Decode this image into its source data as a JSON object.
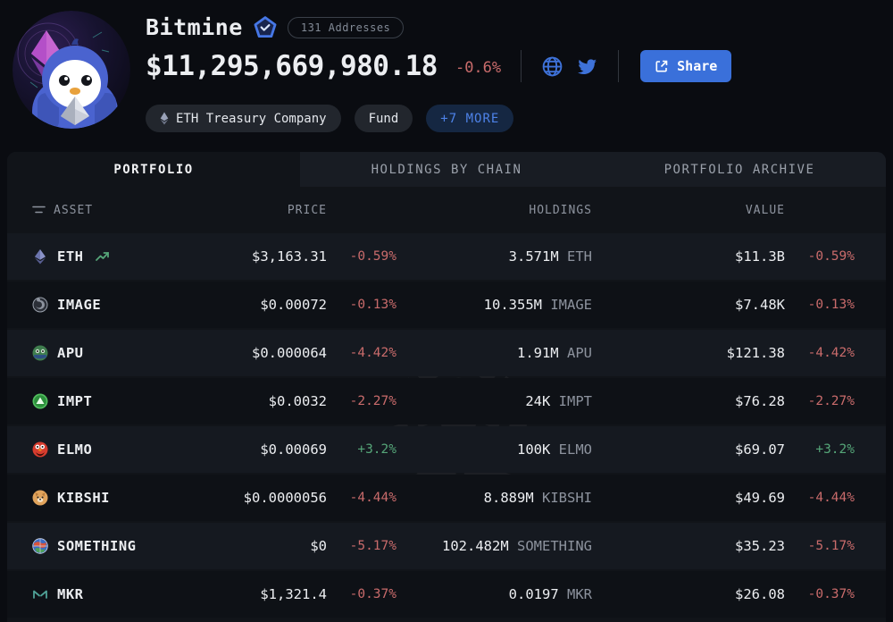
{
  "header": {
    "title": "Bitmine",
    "verified_icon": "verified-pentagon-badge",
    "addresses_pill": "131 Addresses",
    "total_value": "$11,295,669,980.18",
    "total_change": "-0.6%",
    "share_label": "Share",
    "social_icons": [
      "globe-icon",
      "twitter-icon"
    ],
    "tags": [
      {
        "label": "ETH Treasury Company",
        "icon": "eth-mini-icon",
        "style": "default"
      },
      {
        "label": "Fund",
        "style": "default"
      },
      {
        "label": "+7 MORE",
        "style": "accent"
      }
    ]
  },
  "tabs": [
    {
      "label": "PORTFOLIO",
      "active": true
    },
    {
      "label": "HOLDINGS BY CHAIN",
      "active": false
    },
    {
      "label": "PORTFOLIO ARCHIVE",
      "active": false
    }
  ],
  "table": {
    "headers": {
      "asset": "ASSET",
      "price": "PRICE",
      "holdings": "HOLDINGS",
      "value": "VALUE"
    },
    "filter_icon": "filter-icon",
    "rows": [
      {
        "asset": "ETH",
        "icon": "eth-icon",
        "trend": true,
        "price": "$3,163.31",
        "price_change": "-0.59%",
        "holdings_amount": "3.571M",
        "holdings_symbol": "ETH",
        "value": "$11.3B",
        "value_change": "-0.59%",
        "direction": "down"
      },
      {
        "asset": "IMAGE",
        "icon": "image-icon",
        "trend": false,
        "price": "$0.00072",
        "price_change": "-0.13%",
        "holdings_amount": "10.355M",
        "holdings_symbol": "IMAGE",
        "value": "$7.48K",
        "value_change": "-0.13%",
        "direction": "down"
      },
      {
        "asset": "APU",
        "icon": "apu-icon",
        "trend": false,
        "price": "$0.000064",
        "price_change": "-4.42%",
        "holdings_amount": "1.91M",
        "holdings_symbol": "APU",
        "value": "$121.38",
        "value_change": "-4.42%",
        "direction": "down"
      },
      {
        "asset": "IMPT",
        "icon": "impt-icon",
        "trend": false,
        "price": "$0.0032",
        "price_change": "-2.27%",
        "holdings_amount": "24K",
        "holdings_symbol": "IMPT",
        "value": "$76.28",
        "value_change": "-2.27%",
        "direction": "down"
      },
      {
        "asset": "ELMO",
        "icon": "elmo-icon",
        "trend": false,
        "price": "$0.00069",
        "price_change": "+3.2%",
        "holdings_amount": "100K",
        "holdings_symbol": "ELMO",
        "value": "$69.07",
        "value_change": "+3.2%",
        "direction": "up"
      },
      {
        "asset": "KIBSHI",
        "icon": "kibshi-icon",
        "trend": false,
        "price": "$0.0000056",
        "price_change": "-4.44%",
        "holdings_amount": "8.889M",
        "holdings_symbol": "KIBSHI",
        "value": "$49.69",
        "value_change": "-4.44%",
        "direction": "down"
      },
      {
        "asset": "SOMETHING",
        "icon": "something-icon",
        "trend": false,
        "price": "$0",
        "price_change": "-5.17%",
        "holdings_amount": "102.482M",
        "holdings_symbol": "SOMETHING",
        "value": "$35.23",
        "value_change": "-5.17%",
        "direction": "down"
      },
      {
        "asset": "MKR",
        "icon": "mkr-icon",
        "trend": false,
        "price": "$1,321.4",
        "price_change": "-0.37%",
        "holdings_amount": "0.0197",
        "holdings_symbol": "MKR",
        "value": "$26.08",
        "value_change": "-0.37%",
        "direction": "down"
      }
    ]
  },
  "colors": {
    "page_bg": "#0a0c11",
    "panel_bg": "#111419",
    "row_light": "#151920",
    "row_dark": "#0e1116",
    "negative": "#c96b6b",
    "positive": "#55a578",
    "accent_blue": "#3a70da",
    "more_pill_text": "#4d82e8"
  }
}
